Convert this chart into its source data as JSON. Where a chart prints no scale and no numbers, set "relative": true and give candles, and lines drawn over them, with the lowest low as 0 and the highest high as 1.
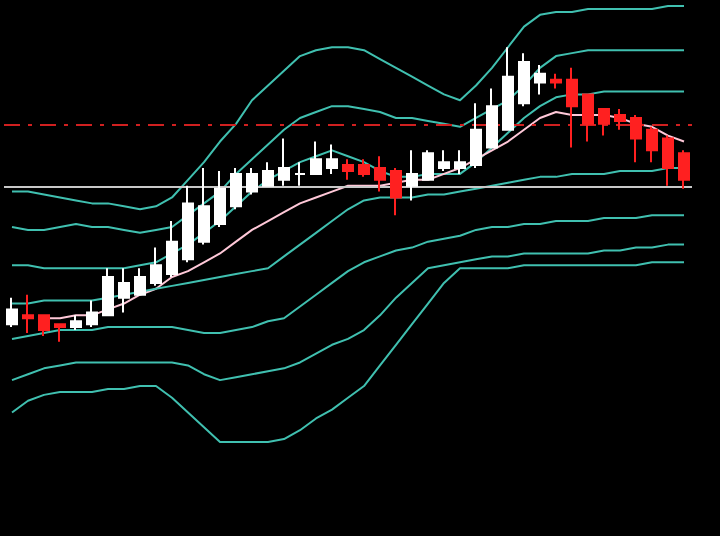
{
  "chart_data": {
    "type": "candlestick",
    "relative": true,
    "grid": false,
    "marker": "none",
    "line_style": "solid",
    "categories": [
      null,
      null,
      null,
      null,
      null,
      null,
      null,
      null,
      null,
      null,
      null,
      null,
      null,
      null,
      null,
      null,
      null,
      null,
      null,
      null,
      null,
      null,
      null,
      null,
      null,
      null,
      null,
      null,
      null,
      null,
      null,
      null,
      null,
      null,
      null,
      null,
      null,
      null,
      null,
      null,
      null,
      null,
      null
    ],
    "ohlc": [
      [
        0.06,
        0.15,
        0.05,
        0.11
      ],
      [
        0.09,
        0.16,
        0.03,
        0.08
      ],
      [
        0.09,
        0.09,
        0.02,
        0.04
      ],
      [
        0.06,
        0.06,
        0,
        0.05
      ],
      [
        0.05,
        0.09,
        0.04,
        0.07
      ],
      [
        0.06,
        0.14,
        0.05,
        0.1
      ],
      [
        0.09,
        0.25,
        0.09,
        0.22
      ],
      [
        0.15,
        0.25,
        0.1,
        0.2
      ],
      [
        0.16,
        0.25,
        0.16,
        0.22
      ],
      [
        0.2,
        0.32,
        0.19,
        0.26
      ],
      [
        0.23,
        0.41,
        0.22,
        0.34
      ],
      [
        0.28,
        0.53,
        0.27,
        0.47
      ],
      [
        0.34,
        0.59,
        0.33,
        0.46
      ],
      [
        0.4,
        0.58,
        0.39,
        0.52
      ],
      [
        0.46,
        0.59,
        0.45,
        0.57
      ],
      [
        0.51,
        0.59,
        0.5,
        0.57
      ],
      [
        0.53,
        0.61,
        0.53,
        0.58
      ],
      [
        0.55,
        0.69,
        0.53,
        0.59
      ],
      [
        0.57,
        0.61,
        0.53,
        0.57
      ],
      [
        0.57,
        0.68,
        0.57,
        0.62
      ],
      [
        0.59,
        0.67,
        0.57,
        0.62
      ],
      [
        0.6,
        0.62,
        0.55,
        0.58
      ],
      [
        0.6,
        0.62,
        0.56,
        0.57
      ],
      [
        0.59,
        0.63,
        0.51,
        0.55
      ],
      [
        0.58,
        0.59,
        0.43,
        0.49
      ],
      [
        0.53,
        0.65,
        0.48,
        0.57
      ],
      [
        0.55,
        0.65,
        0.55,
        0.64
      ],
      [
        0.59,
        0.65,
        0.58,
        0.61
      ],
      [
        0.59,
        0.65,
        0.57,
        0.61
      ],
      [
        0.6,
        0.81,
        0.59,
        0.72
      ],
      [
        0.66,
        0.86,
        0.66,
        0.8
      ],
      [
        0.72,
        1,
        0.72,
        0.9
      ],
      [
        0.81,
        0.98,
        0.8,
        0.95
      ],
      [
        0.88,
        0.94,
        0.84,
        0.91
      ],
      [
        0.89,
        0.91,
        0.86,
        0.88
      ],
      [
        0.89,
        0.93,
        0.66,
        0.8
      ],
      [
        0.84,
        0.84,
        0.68,
        0.74
      ],
      [
        0.79,
        0.79,
        0.7,
        0.74
      ],
      [
        0.77,
        0.79,
        0.72,
        0.75
      ],
      [
        0.76,
        0.77,
        0.61,
        0.69
      ],
      [
        0.72,
        0.73,
        0.61,
        0.65
      ],
      [
        0.69,
        0.7,
        0.53,
        0.59
      ],
      [
        0.64,
        0.65,
        0.52,
        0.55
      ]
    ],
    "colors": [
      "#ffffff",
      "#ff2020",
      "#ff2020",
      "#ff2020",
      "#ffffff",
      "#ffffff",
      "#ffffff",
      "#ffffff",
      "#ffffff",
      "#ffffff",
      "#ffffff",
      "#ffffff",
      "#ffffff",
      "#ffffff",
      "#ffffff",
      "#ffffff",
      "#ffffff",
      "#ffffff",
      "#ffffff",
      "#ffffff",
      "#ffffff",
      "#ff2020",
      "#ff2020",
      "#ff2020",
      "#ff2020",
      "#ffffff",
      "#ffffff",
      "#ffffff",
      "#ffffff",
      "#ffffff",
      "#ffffff",
      "#ffffff",
      "#ffffff",
      "#ffffff",
      "#ff2020",
      "#ff2020",
      "#ff2020",
      "#ff2020",
      "#ff2020",
      "#ff2020",
      "#ff2020",
      "#ff2020",
      "#ff2020"
    ],
    "series": [
      {
        "type": "line",
        "color": "#40c0b0",
        "values": [
          0.51,
          0.51,
          0.5,
          0.49,
          0.48,
          0.47,
          0.47,
          0.46,
          0.45,
          0.46,
          0.49,
          0.55,
          0.61,
          0.68,
          0.74,
          0.82,
          0.87,
          0.92,
          0.97,
          0.99,
          1.0,
          1.0,
          0.99,
          0.96,
          0.93,
          0.9,
          0.87,
          0.84,
          0.82,
          0.87,
          0.93,
          1.0,
          1.07,
          1.11,
          1.12,
          1.12,
          1.13,
          1.13,
          1.13,
          1.13,
          1.13,
          1.14,
          1.14
        ]
      },
      {
        "type": "line",
        "color": "#40c0b0",
        "values": [
          0.39,
          0.38,
          0.38,
          0.39,
          0.4,
          0.39,
          0.39,
          0.38,
          0.37,
          0.38,
          0.39,
          0.43,
          0.47,
          0.51,
          0.57,
          0.62,
          0.67,
          0.72,
          0.76,
          0.78,
          0.8,
          0.8,
          0.79,
          0.78,
          0.76,
          0.76,
          0.75,
          0.74,
          0.73,
          0.76,
          0.79,
          0.82,
          0.87,
          0.93,
          0.97,
          0.98,
          0.99,
          0.99,
          0.99,
          0.99,
          0.99,
          0.99,
          0.99
        ]
      },
      {
        "type": "line",
        "color": "#40c0b0",
        "values": [
          0.26,
          0.26,
          0.25,
          0.25,
          0.25,
          0.25,
          0.25,
          0.25,
          0.26,
          0.27,
          0.3,
          0.33,
          0.37,
          0.41,
          0.46,
          0.51,
          0.55,
          0.58,
          0.61,
          0.63,
          0.65,
          0.63,
          0.61,
          0.58,
          0.56,
          0.56,
          0.57,
          0.57,
          0.57,
          0.61,
          0.66,
          0.71,
          0.76,
          0.8,
          0.83,
          0.84,
          0.84,
          0.85,
          0.85,
          0.85,
          0.85,
          0.85,
          0.85
        ]
      },
      {
        "type": "line",
        "color": "#ffc8d8",
        "values": [
          null,
          null,
          0.08,
          0.08,
          0.09,
          0.09,
          0.11,
          0.13,
          0.16,
          0.18,
          0.22,
          0.24,
          0.27,
          0.3,
          0.34,
          0.38,
          0.41,
          0.44,
          0.47,
          0.49,
          0.51,
          0.53,
          0.53,
          0.53,
          0.54,
          0.55,
          0.55,
          0.57,
          0.59,
          0.62,
          0.65,
          0.68,
          0.72,
          0.76,
          0.78,
          0.77,
          0.77,
          0.77,
          0.76,
          0.74,
          0.73,
          0.7,
          0.68
        ]
      },
      {
        "type": "line",
        "color": "#40c0b0",
        "values": [
          0.13,
          0.13,
          0.14,
          0.14,
          0.14,
          0.14,
          0.15,
          0.16,
          0.17,
          0.18,
          0.19,
          0.2,
          0.21,
          0.22,
          0.23,
          0.24,
          0.25,
          0.29,
          0.33,
          0.37,
          0.41,
          0.45,
          0.48,
          0.49,
          0.49,
          0.49,
          0.5,
          0.5,
          0.51,
          0.52,
          0.53,
          0.54,
          0.55,
          0.56,
          0.56,
          0.57,
          0.57,
          0.57,
          0.58,
          0.58,
          0.58,
          0.59,
          0.59
        ]
      },
      {
        "type": "line",
        "color": "#40c0b0",
        "values": [
          0.01,
          0.02,
          0.03,
          0.04,
          0.04,
          0.04,
          0.05,
          0.05,
          0.05,
          0.05,
          0.05,
          0.04,
          0.03,
          0.03,
          0.04,
          0.05,
          0.07,
          0.08,
          0.12,
          0.16,
          0.2,
          0.24,
          0.27,
          0.29,
          0.31,
          0.32,
          0.34,
          0.35,
          0.36,
          0.38,
          0.39,
          0.39,
          0.4,
          0.4,
          0.41,
          0.41,
          0.41,
          0.42,
          0.42,
          0.42,
          0.43,
          0.43,
          0.43
        ]
      },
      {
        "type": "line",
        "color": "#40c0b0",
        "values": [
          -0.13,
          -0.11,
          -0.09,
          -0.08,
          -0.07,
          -0.07,
          -0.07,
          -0.07,
          -0.07,
          -0.07,
          -0.07,
          -0.08,
          -0.11,
          -0.13,
          -0.12,
          -0.11,
          -0.1,
          -0.09,
          -0.07,
          -0.04,
          -0.01,
          0.01,
          0.04,
          0.09,
          0.15,
          0.2,
          0.25,
          0.26,
          0.27,
          0.28,
          0.29,
          0.29,
          0.3,
          0.3,
          0.3,
          0.3,
          0.3,
          0.31,
          0.31,
          0.32,
          0.32,
          0.33,
          0.33
        ]
      },
      {
        "type": "line",
        "color": "#40c0b0",
        "values": [
          -0.24,
          -0.2,
          -0.18,
          -0.17,
          -0.17,
          -0.17,
          -0.16,
          -0.16,
          -0.15,
          -0.15,
          -0.19,
          -0.24,
          -0.29,
          -0.34,
          -0.34,
          -0.34,
          -0.34,
          -0.33,
          -0.3,
          -0.26,
          -0.23,
          -0.19,
          -0.15,
          -0.08,
          -0.01,
          0.06,
          0.13,
          0.2,
          0.25,
          0.25,
          0.25,
          0.25,
          0.26,
          0.26,
          0.26,
          0.26,
          0.26,
          0.26,
          0.26,
          0.26,
          0.27,
          0.27,
          0.27
        ]
      }
    ],
    "ref_lines": [
      {
        "axis": "y",
        "value": 0.74,
        "color": "#d02020",
        "line_style": "dashed"
      },
      {
        "axis": "y",
        "value": 0.53,
        "color": "#c8c8c8",
        "line_style": "solid"
      }
    ]
  }
}
